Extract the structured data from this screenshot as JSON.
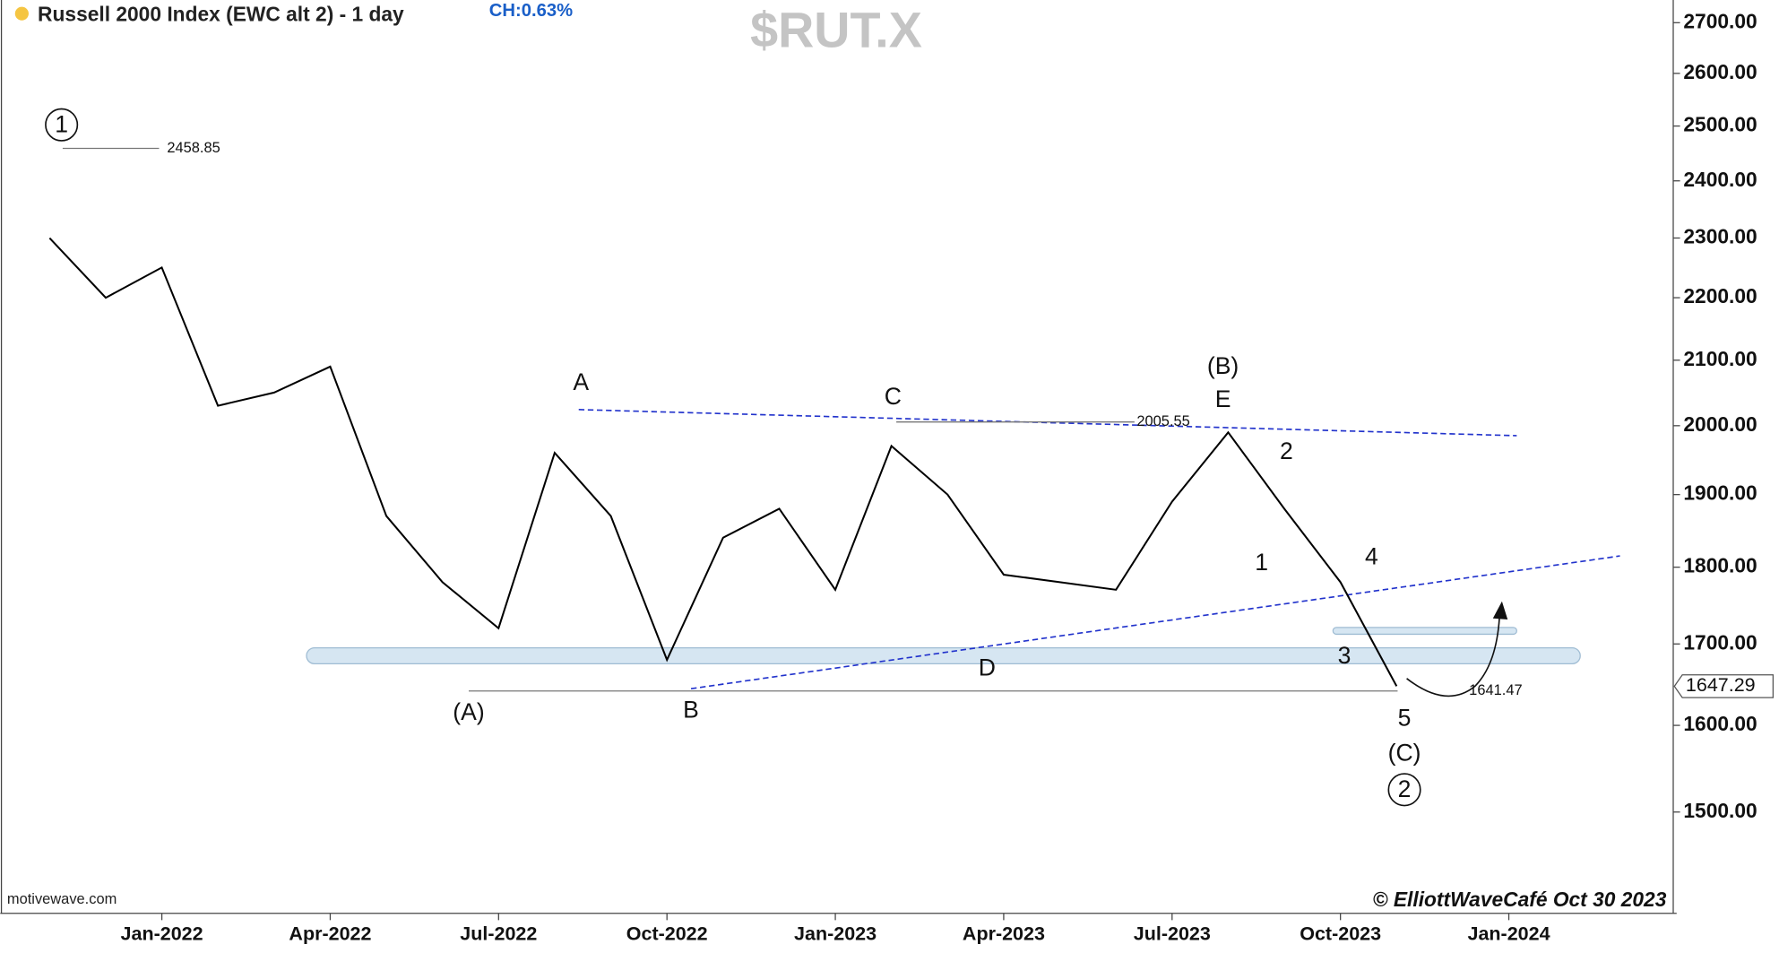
{
  "chart_data": {
    "type": "line",
    "title": "Russell 2000 Index (EWC alt 2) - 1 day",
    "change": "CH:0.63%",
    "symbol": "$RUT.X",
    "x": [
      "2021-11",
      "2021-12",
      "2022-01",
      "2022-02",
      "2022-03",
      "2022-04",
      "2022-05",
      "2022-06",
      "2022-07",
      "2022-08",
      "2022-09",
      "2022-10",
      "2022-11",
      "2022-12",
      "2023-01",
      "2023-02",
      "2023-03",
      "2023-04",
      "2023-05",
      "2023-06",
      "2023-07",
      "2023-08",
      "2023-09",
      "2023-10",
      "2023-11"
    ],
    "series": [
      {
        "name": "$RUT.X",
        "color": "#000000",
        "values": [
          2300,
          2200,
          2250,
          2030,
          2050,
          2090,
          1870,
          1780,
          1720,
          1960,
          1870,
          1680,
          1840,
          1880,
          1770,
          1970,
          1900,
          1790,
          1780,
          1770,
          1890,
          1990,
          1880,
          1780,
          1647.29
        ]
      }
    ],
    "xlim": [
      "2021-10",
      "2024-03"
    ],
    "xticks": [
      {
        "value": "2022-01",
        "label": "Jan-2022"
      },
      {
        "value": "2022-04",
        "label": "Apr-2022"
      },
      {
        "value": "2022-07",
        "label": "Jul-2022"
      },
      {
        "value": "2022-10",
        "label": "Oct-2022"
      },
      {
        "value": "2023-01",
        "label": "Jan-2023"
      },
      {
        "value": "2023-04",
        "label": "Apr-2023"
      },
      {
        "value": "2023-07",
        "label": "Jul-2023"
      },
      {
        "value": "2023-10",
        "label": "Oct-2023"
      },
      {
        "value": "2024-01",
        "label": "Jan-2024"
      }
    ],
    "ylim": [
      1391,
      2746
    ],
    "log_scale": true,
    "yticks": [
      {
        "value": 1500,
        "label": "1500.00"
      },
      {
        "value": 1600,
        "label": "1600.00"
      },
      {
        "value": 1700,
        "label": "1700.00"
      },
      {
        "value": 1800,
        "label": "1800.00"
      },
      {
        "value": 1900,
        "label": "1900.00"
      },
      {
        "value": 2000,
        "label": "2000.00"
      },
      {
        "value": 2100,
        "label": "2100.00"
      },
      {
        "value": 2200,
        "label": "2200.00"
      },
      {
        "value": 2300,
        "label": "2300.00"
      },
      {
        "value": 2400,
        "label": "2400.00"
      },
      {
        "value": 2500,
        "label": "2500.00"
      },
      {
        "value": 2600,
        "label": "2600.00"
      },
      {
        "value": 2700,
        "label": "2700.00"
      }
    ],
    "price_labels": [
      2458.85,
      2005.55,
      1641.47
    ],
    "last_price": 1647.29,
    "annotations": [
      "1",
      "A",
      "C",
      "(B)",
      "E",
      "2",
      "1",
      "4",
      "3",
      "D",
      "(A)",
      "B",
      "5",
      "(C)",
      "2"
    ],
    "source": "motivewave.com",
    "credit": "© ElliottWaveCafé Oct 30 2023"
  }
}
